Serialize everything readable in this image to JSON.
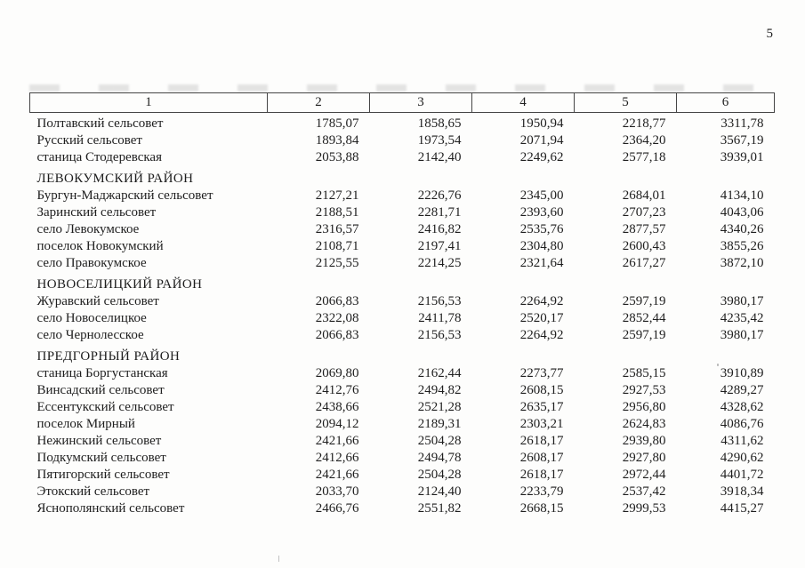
{
  "page": {
    "number": "5"
  },
  "table": {
    "columns": [
      "1",
      "2",
      "3",
      "4",
      "5",
      "6"
    ],
    "sections": [
      {
        "header": null,
        "rows": [
          {
            "name": "Полтавский сельсовет",
            "values": [
              "1785,07",
              "1858,65",
              "1950,94",
              "2218,77",
              "3311,78"
            ]
          },
          {
            "name": "Русский сельсовет",
            "values": [
              "1893,84",
              "1973,54",
              "2071,94",
              "2364,20",
              "3567,19"
            ]
          },
          {
            "name": "станица Стодеревская",
            "values": [
              "2053,88",
              "2142,40",
              "2249,62",
              "2577,18",
              "3939,01"
            ]
          }
        ]
      },
      {
        "header": "ЛЕВОКУМСКИЙ РАЙОН",
        "rows": [
          {
            "name": "Бургун-Маджарский сельсовет",
            "values": [
              "2127,21",
              "2226,76",
              "2345,00",
              "2684,01",
              "4134,10"
            ]
          },
          {
            "name": "Заринский сельсовет",
            "values": [
              "2188,51",
              "2281,71",
              "2393,60",
              "2707,23",
              "4043,06"
            ]
          },
          {
            "name": "село Левокумское",
            "values": [
              "2316,57",
              "2416,82",
              "2535,76",
              "2877,57",
              "4340,26"
            ]
          },
          {
            "name": "поселок Новокумский",
            "values": [
              "2108,71",
              "2197,41",
              "2304,80",
              "2600,43",
              "3855,26"
            ]
          },
          {
            "name": "село Правокумское",
            "values": [
              "2125,55",
              "2214,25",
              "2321,64",
              "2617,27",
              "3872,10"
            ]
          }
        ]
      },
      {
        "header": "НОВОСЕЛИЦКИЙ РАЙОН",
        "rows": [
          {
            "name": "Журавский сельсовет",
            "values": [
              "2066,83",
              "2156,53",
              "2264,92",
              "2597,19",
              "3980,17"
            ]
          },
          {
            "name": "село Новоселицкое",
            "values": [
              "2322,08",
              "2411,78",
              "2520,17",
              "2852,44",
              "4235,42"
            ]
          },
          {
            "name": "село Чернолесское",
            "values": [
              "2066,83",
              "2156,53",
              "2264,92",
              "2597,19",
              "3980,17"
            ]
          }
        ]
      },
      {
        "header": "ПРЕДГОРНЫЙ РАЙОН",
        "rows": [
          {
            "name": "станица Боргустанская",
            "values": [
              "2069,80",
              "2162,44",
              "2273,77",
              "2585,15",
              "3910,89"
            ]
          },
          {
            "name": "Винсадский сельсовет",
            "values": [
              "2412,76",
              "2494,82",
              "2608,15",
              "2927,53",
              "4289,27"
            ]
          },
          {
            "name": "Ессентукский сельсовет",
            "values": [
              "2438,66",
              "2521,28",
              "2635,17",
              "2956,80",
              "4328,62"
            ]
          },
          {
            "name": "поселок Мирный",
            "values": [
              "2094,12",
              "2189,31",
              "2303,21",
              "2624,83",
              "4086,76"
            ]
          },
          {
            "name": "Нежинский сельсовет",
            "values": [
              "2421,66",
              "2504,28",
              "2618,17",
              "2939,80",
              "4311,62"
            ]
          },
          {
            "name": "Подкумский сельсовет",
            "values": [
              "2412,66",
              "2494,78",
              "2608,17",
              "2927,80",
              "4290,62"
            ]
          },
          {
            "name": "Пятигорский сельсовет",
            "values": [
              "2421,66",
              "2504,28",
              "2618,17",
              "2972,44",
              "4401,72"
            ]
          },
          {
            "name": "Этокский сельсовет",
            "values": [
              "2033,70",
              "2124,40",
              "2233,79",
              "2537,42",
              "3918,34"
            ]
          },
          {
            "name": "Яснополянский сельсовет",
            "values": [
              "2466,76",
              "2551,82",
              "2668,15",
              "2999,53",
              "4415,27"
            ]
          }
        ]
      }
    ]
  }
}
